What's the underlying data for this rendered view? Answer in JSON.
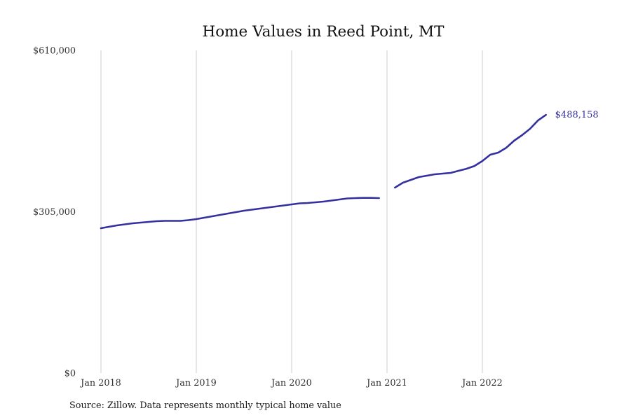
{
  "header": {
    "title": "Home Values in Reed Point, MT"
  },
  "footer": {
    "source_note": "Source: Zillow. Data represents monthly typical home value"
  },
  "chart_data": {
    "type": "line",
    "title": "Home Values in Reed Point, MT",
    "xlabel": "",
    "ylabel": "",
    "x_start_label": "Jan 2018",
    "frequency": "monthly",
    "ylim": [
      0,
      610000
    ],
    "grid": "vertical-only",
    "legend": "none",
    "line_color": "#34309f",
    "gridline_color": "#cccccc",
    "tick_color": "#333333",
    "final_value": 488158,
    "final_value_label": "$488,158",
    "yticks": [
      {
        "value": 0,
        "label": "$0"
      },
      {
        "value": 305000,
        "label": "$305,000"
      },
      {
        "value": 610000,
        "label": "$610,000"
      }
    ],
    "xticks": [
      {
        "month_index": 0,
        "label": "Jan 2018"
      },
      {
        "month_index": 12,
        "label": "Jan 2019"
      },
      {
        "month_index": 24,
        "label": "Jan 2020"
      },
      {
        "month_index": 36,
        "label": "Jan 2021"
      },
      {
        "month_index": 48,
        "label": "Jan 2022"
      }
    ],
    "series": [
      {
        "name": "Typical home value",
        "unit": "USD",
        "note": "null entry represents the visible gap in the plotted line near Jan 2021",
        "values": [
          273900,
          276500,
          279200,
          281200,
          283200,
          284500,
          285800,
          287100,
          287800,
          287800,
          287800,
          289100,
          291100,
          293700,
          296400,
          299000,
          301700,
          304300,
          307000,
          309000,
          310900,
          312900,
          314900,
          316900,
          318900,
          320900,
          321500,
          322900,
          324200,
          326200,
          328100,
          330100,
          330800,
          331200,
          331200,
          330800,
          null,
          350600,
          359900,
          365200,
          370500,
          373100,
          375800,
          377100,
          378400,
          382400,
          386300,
          391600,
          400900,
          412800,
          416800,
          426000,
          439300,
          449900,
          461800,
          477600,
          488158
        ]
      }
    ]
  }
}
